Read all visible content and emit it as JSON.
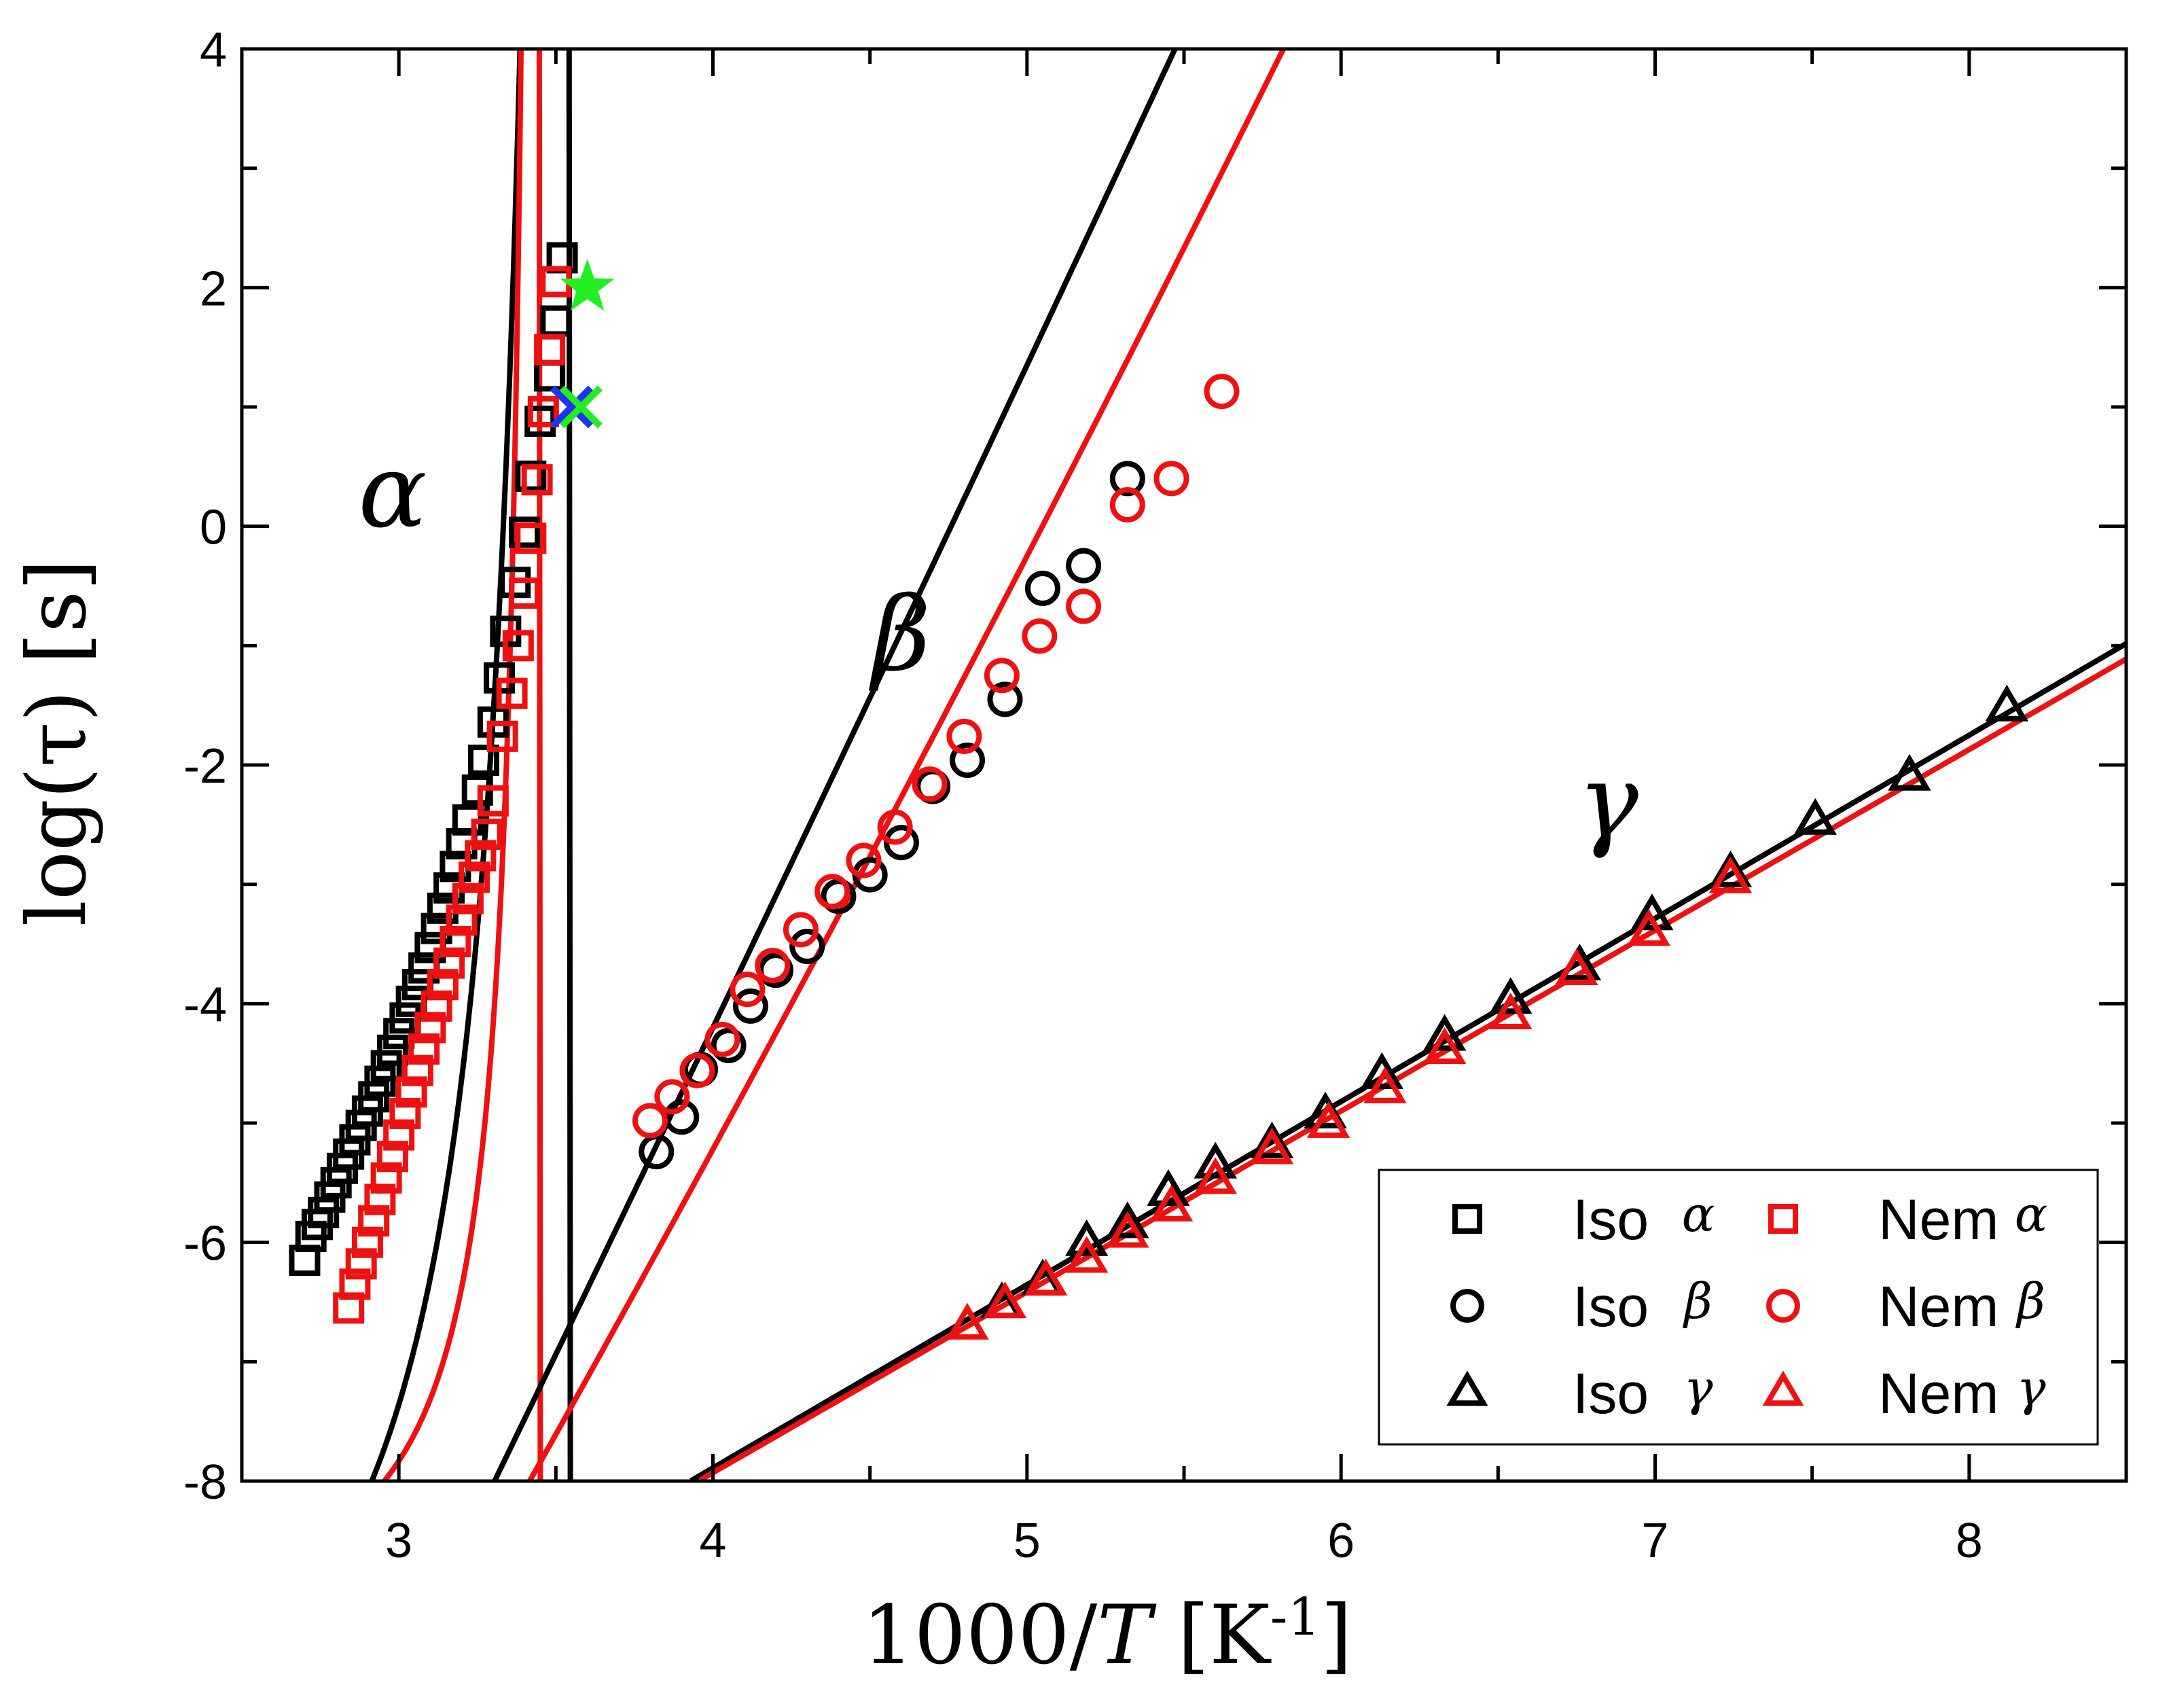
{
  "chart_data": {
    "type": "scatter",
    "title": "",
    "xlabel": "1000/T [K-1]",
    "ylabel": "log(τ) [s]",
    "xlim": [
      2.5,
      8.5
    ],
    "ylim": [
      -8,
      4
    ],
    "x_ticks": [
      3,
      4,
      5,
      6,
      7,
      8
    ],
    "x_tick_labels": [
      "3",
      "4",
      "5",
      "6",
      "7",
      "8"
    ],
    "y_ticks": [
      -8,
      -6,
      -4,
      -2,
      0,
      2,
      4
    ],
    "y_tick_labels": [
      "-8",
      "-6",
      "-4",
      "-2",
      "0",
      "2",
      "4"
    ],
    "grid": false,
    "legend_position": "bottom-right",
    "colors": {
      "iso": "#000000",
      "nem": "#ee1111",
      "star": "#22ee22",
      "cross_blue": "#2233ee",
      "cross_green": "#22ee22"
    },
    "annotations": [
      {
        "text": "α",
        "x": 2.98,
        "y": 0.0
      },
      {
        "text": "β",
        "x": 4.6,
        "y": -1.2
      },
      {
        "text": "γ",
        "x": 6.85,
        "y": -2.6
      }
    ],
    "series": [
      {
        "name": "Iso α",
        "process": "α",
        "group": "Iso",
        "marker": "square",
        "color": "#000000",
        "x": [
          2.7,
          2.72,
          2.74,
          2.76,
          2.78,
          2.8,
          2.82,
          2.84,
          2.86,
          2.88,
          2.9,
          2.92,
          2.94,
          2.96,
          2.98,
          3.0,
          3.02,
          3.04,
          3.06,
          3.08,
          3.1,
          3.12,
          3.14,
          3.16,
          3.18,
          3.2,
          3.22,
          3.25,
          3.27,
          3.3,
          3.32,
          3.34,
          3.37,
          3.4,
          3.42,
          3.45,
          3.48,
          3.5,
          3.52
        ],
        "y": [
          -6.15,
          -5.95,
          -5.85,
          -5.75,
          -5.62,
          -5.5,
          -5.38,
          -5.26,
          -5.14,
          -5.02,
          -4.9,
          -4.78,
          -4.65,
          -4.52,
          -4.39,
          -4.25,
          -4.12,
          -3.98,
          -3.84,
          -3.7,
          -3.53,
          -3.37,
          -3.2,
          -3.03,
          -2.85,
          -2.66,
          -2.46,
          -2.21,
          -1.96,
          -1.64,
          -1.27,
          -0.88,
          -0.47,
          -0.05,
          0.42,
          0.88,
          1.26,
          1.72,
          2.25
        ]
      },
      {
        "name": "Nem α",
        "process": "α",
        "group": "Nem",
        "marker": "square",
        "color": "#ee1111",
        "x": [
          2.84,
          2.86,
          2.88,
          2.9,
          2.92,
          2.94,
          2.96,
          2.98,
          3.0,
          3.02,
          3.04,
          3.06,
          3.08,
          3.1,
          3.12,
          3.14,
          3.16,
          3.18,
          3.2,
          3.22,
          3.24,
          3.26,
          3.28,
          3.3,
          3.33,
          3.36,
          3.38,
          3.4,
          3.42,
          3.44,
          3.46,
          3.48,
          3.5
        ],
        "y": [
          -6.55,
          -6.35,
          -6.18,
          -6.0,
          -5.82,
          -5.64,
          -5.46,
          -5.28,
          -5.1,
          -4.92,
          -4.74,
          -4.56,
          -4.38,
          -4.2,
          -4.02,
          -3.84,
          -3.66,
          -3.48,
          -3.3,
          -3.12,
          -2.94,
          -2.76,
          -2.58,
          -2.3,
          -1.76,
          -1.4,
          -1.0,
          -0.56,
          -0.1,
          0.39,
          0.96,
          1.48,
          2.05
        ]
      },
      {
        "name": "Iso β",
        "process": "β",
        "group": "Iso",
        "marker": "circle",
        "color": "#000000",
        "x": [
          3.82,
          3.9,
          3.96,
          4.05,
          4.12,
          4.2,
          4.3,
          4.4,
          4.5,
          4.6,
          4.7,
          4.81,
          4.93,
          5.05,
          5.18,
          5.32
        ],
        "y": [
          -5.24,
          -4.95,
          -4.55,
          -4.35,
          -4.02,
          -3.72,
          -3.52,
          -3.1,
          -2.92,
          -2.65,
          -2.18,
          -1.96,
          -1.45,
          -0.52,
          -0.33,
          0.4
        ]
      },
      {
        "name": "Nem β",
        "process": "β",
        "group": "Nem",
        "marker": "circle",
        "color": "#ee1111",
        "x": [
          3.8,
          3.87,
          3.95,
          4.03,
          4.11,
          4.19,
          4.28,
          4.38,
          4.48,
          4.58,
          4.69,
          4.8,
          4.92,
          5.04,
          5.18,
          5.32,
          5.46,
          5.62
        ],
        "y": [
          -4.98,
          -4.78,
          -4.56,
          -4.3,
          -3.88,
          -3.68,
          -3.38,
          -3.06,
          -2.8,
          -2.52,
          -2.16,
          -1.76,
          -1.25,
          -0.92,
          -0.67,
          0.18,
          0.4,
          1.13
        ]
      },
      {
        "name": "Iso γ",
        "process": "γ",
        "group": "Iso",
        "marker": "triangle",
        "color": "#000000",
        "x": [
          4.92,
          5.05,
          5.19,
          5.32,
          5.45,
          5.6,
          5.78,
          5.95,
          6.13,
          6.33,
          6.54,
          6.76,
          6.99,
          7.24,
          7.51,
          7.81,
          8.12
        ],
        "y": [
          -6.52,
          -6.33,
          -6.0,
          -5.85,
          -5.58,
          -5.35,
          -5.18,
          -4.93,
          -4.6,
          -4.28,
          -3.97,
          -3.69,
          -3.27,
          -2.91,
          -2.47,
          -2.1,
          -1.52
        ]
      },
      {
        "name": "Nem γ",
        "process": "γ",
        "group": "Nem",
        "marker": "triangle",
        "color": "#ee1111",
        "x": [
          4.81,
          4.93,
          5.06,
          5.19,
          5.32,
          5.46,
          5.6,
          5.78,
          5.96,
          6.14,
          6.33,
          6.54,
          6.75,
          6.98,
          7.24
        ],
        "y": [
          -6.7,
          -6.52,
          -6.33,
          -6.14,
          -5.93,
          -5.71,
          -5.48,
          -5.23,
          -5.01,
          -4.72,
          -4.39,
          -4.1,
          -3.73,
          -3.4,
          -2.96
        ]
      },
      {
        "name": "VFT fit Iso α",
        "marker": "line",
        "color": "#000000",
        "kind": "vft",
        "A": -11.35,
        "B": 205,
        "T0": 282,
        "x_range": [
          2.5,
          3.555
        ]
      },
      {
        "name": "VFT fit Nem α",
        "marker": "line",
        "color": "#ee1111",
        "kind": "vft",
        "A": -9.4,
        "B": 68,
        "T0": 290,
        "x_range": [
          2.66,
          3.555
        ]
      },
      {
        "name": "Fit Iso β",
        "marker": "line",
        "color": "#000000",
        "kind": "poly",
        "coef": [
          -25.4,
          5.1,
          0.05
        ],
        "x_range": [
          3.03,
          6.34
        ]
      },
      {
        "name": "Fit Nem β",
        "marker": "line",
        "color": "#ee1111",
        "kind": "poly",
        "coef": [
          -22.5,
          3.8,
          0.13
        ],
        "x_range": [
          2.5,
          6.49
        ]
      },
      {
        "name": "Fit Iso γ",
        "marker": "line",
        "color": "#000000",
        "kind": "linear",
        "slope": 1.535,
        "intercept": -14.03,
        "x_range": [
          3.93,
          8.5
        ]
      },
      {
        "name": "Fit Nem γ",
        "marker": "line",
        "color": "#ee1111",
        "kind": "linear",
        "slope": 1.515,
        "intercept": -13.99,
        "x_range": [
          3.96,
          8.5
        ]
      },
      {
        "name": "Star marker",
        "marker": "star",
        "color": "#22ee22",
        "x": [
          3.6
        ],
        "y": [
          2.0
        ]
      },
      {
        "name": "Blue cross",
        "marker": "x",
        "color": "#2233ee",
        "x": [
          3.55
        ],
        "y": [
          1.0
        ]
      },
      {
        "name": "Green cross",
        "marker": "x",
        "color": "#22ee22",
        "x": [
          3.58
        ],
        "y": [
          1.0
        ]
      }
    ]
  },
  "legend": {
    "entries": [
      {
        "label": "Iso",
        "greek": "α",
        "marker": "square",
        "color": "#000000"
      },
      {
        "label": "Iso",
        "greek": "β",
        "marker": "circle",
        "color": "#000000"
      },
      {
        "label": "Iso",
        "greek": "γ",
        "marker": "triangle",
        "color": "#000000"
      },
      {
        "label": "Nem",
        "greek": "α",
        "marker": "square",
        "color": "#ee1111"
      },
      {
        "label": "Nem",
        "greek": "β",
        "marker": "circle",
        "color": "#ee1111"
      },
      {
        "label": "Nem",
        "greek": "γ",
        "marker": "triangle",
        "color": "#ee1111"
      }
    ]
  },
  "axes": {
    "xlabel_main": "1000/",
    "xlabel_var": "T",
    "xlabel_unit_open": " [K",
    "xlabel_unit_exp": "-1",
    "xlabel_unit_close": "]",
    "ylabel": "log(τ)  [s]"
  }
}
